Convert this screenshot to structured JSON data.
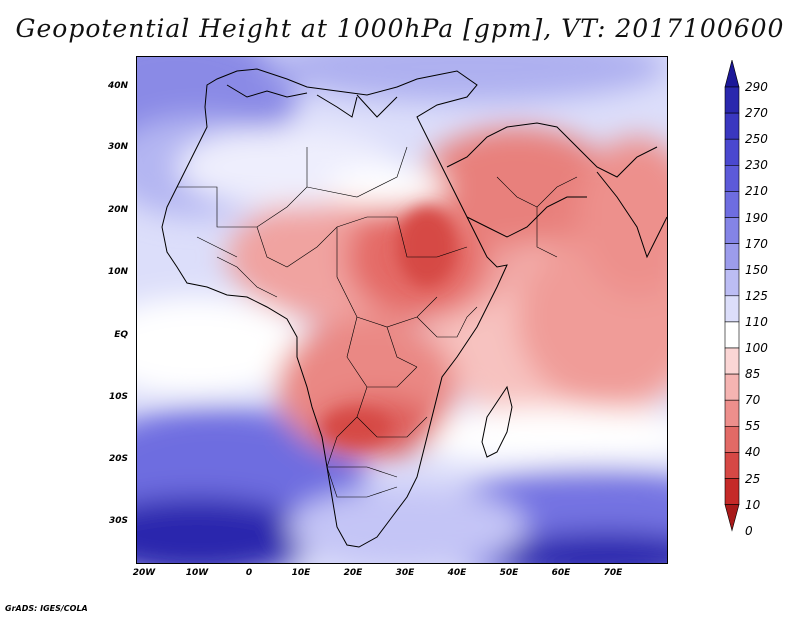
{
  "title": "Geopotential Height at 1000hPa [gpm], VT: 2017100600",
  "credit": "GrADS: IGES/COLA",
  "map": {
    "region": "Africa",
    "lat_labels": [
      "40N",
      "30N",
      "20N",
      "10N",
      "EQ",
      "10S",
      "20S",
      "30S"
    ],
    "lon_labels": [
      "20W",
      "10W",
      "0",
      "10E",
      "20E",
      "30E",
      "40E",
      "50E",
      "60E",
      "70E"
    ]
  },
  "colorbar": {
    "labels": [
      "290",
      "270",
      "250",
      "230",
      "210",
      "190",
      "170",
      "150",
      "125",
      "110",
      "100",
      "85",
      "70",
      "55",
      "40",
      "25",
      "10",
      "0"
    ],
    "colors": [
      "#1c1898",
      "#2a27ad",
      "#3a37c0",
      "#4a48cf",
      "#5c5ad9",
      "#6e6de0",
      "#8484e6",
      "#9c9cec",
      "#bcbdf4",
      "#dcdefa",
      "#ffffff",
      "#fbd6d5",
      "#f5b4b2",
      "#ed8f8c",
      "#e26a66",
      "#d64845",
      "#c52a28",
      "#a81a1a"
    ]
  }
}
